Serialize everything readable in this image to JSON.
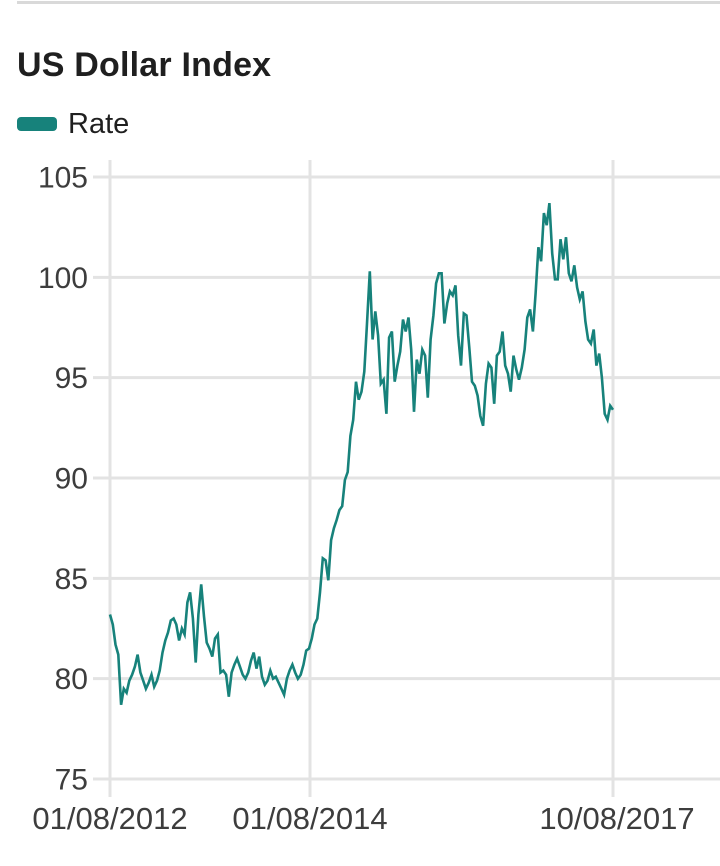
{
  "header": {
    "title": "US Dollar Index"
  },
  "legend": {
    "items": [
      {
        "label": "Rate",
        "color": "#17827b"
      }
    ]
  },
  "colors": {
    "line": "#17827b",
    "grid": "#e3e3e3",
    "axis_text": "#3d3d3d",
    "title_text": "#1f1f1f",
    "divider": "#d9d9d9",
    "background": "#ffffff"
  },
  "chart_data": {
    "type": "line",
    "title": "US Dollar Index",
    "xlabel": "",
    "ylabel": "",
    "ylim": [
      75,
      105
    ],
    "grid": true,
    "legend_position": "top-left",
    "y_ticks": [
      105,
      100,
      95,
      90,
      85,
      80,
      75
    ],
    "x_ticks": [
      {
        "label": "01/08/2012",
        "frac": 0
      },
      {
        "label": "01/08/2014",
        "frac": 0.3976
      },
      {
        "label": "10/08/2017",
        "frac": 1
      }
    ],
    "series": [
      {
        "name": "Rate",
        "start_date": "01/08/2012",
        "end_date": "10/08/2017",
        "points_per_month": 3,
        "values": [
          83.2,
          82.7,
          81.7,
          81.2,
          78.7,
          79.5,
          79.3,
          79.9,
          80.2,
          80.6,
          81.2,
          80.3,
          79.9,
          79.5,
          79.8,
          80.2,
          79.6,
          79.9,
          80.4,
          81.3,
          81.9,
          82.3,
          82.9,
          83.0,
          82.7,
          81.9,
          82.5,
          82.2,
          83.8,
          84.3,
          83.0,
          80.8,
          83.2,
          84.7,
          83.1,
          81.8,
          81.5,
          81.1,
          82.0,
          82.2,
          80.3,
          80.4,
          80.2,
          79.1,
          80.3,
          80.7,
          81.0,
          80.6,
          80.2,
          80.0,
          80.3,
          80.9,
          81.3,
          80.5,
          81.1,
          80.1,
          79.7,
          79.9,
          80.4,
          80.0,
          80.1,
          79.8,
          79.5,
          79.2,
          80.0,
          80.4,
          80.7,
          80.3,
          80.0,
          80.2,
          80.7,
          81.4,
          81.5,
          82.0,
          82.7,
          83.0,
          84.3,
          86.0,
          85.9,
          84.9,
          86.9,
          87.5,
          87.9,
          88.4,
          88.6,
          89.9,
          90.3,
          92.1,
          92.9,
          94.8,
          93.9,
          94.3,
          95.3,
          97.7,
          100.3,
          96.9,
          98.3,
          97.1,
          94.7,
          94.9,
          93.2,
          97.0,
          97.3,
          94.8,
          95.6,
          96.3,
          97.9,
          97.3,
          98.0,
          96.4,
          93.3,
          95.9,
          95.2,
          96.4,
          96.1,
          94.0,
          96.9,
          98.1,
          99.7,
          100.2,
          100.2,
          97.7,
          98.7,
          99.3,
          99.1,
          99.6,
          97.1,
          95.6,
          98.2,
          98.1,
          96.5,
          94.8,
          94.6,
          94.1,
          93.1,
          92.6,
          94.7,
          95.7,
          95.5,
          93.7,
          96.1,
          96.3,
          97.3,
          95.6,
          95.2,
          94.3,
          96.1,
          95.4,
          94.9,
          95.5,
          96.4,
          98.0,
          98.4,
          97.3,
          99.2,
          101.5,
          100.8,
          103.2,
          102.6,
          103.7,
          101.2,
          99.9,
          99.9,
          101.9,
          100.9,
          102.0,
          100.2,
          99.8,
          100.6,
          99.5,
          98.9,
          99.3,
          97.8,
          96.9,
          96.7,
          97.4,
          95.6,
          96.2,
          95.0,
          93.2,
          92.9,
          93.6,
          93.4
        ]
      }
    ]
  }
}
